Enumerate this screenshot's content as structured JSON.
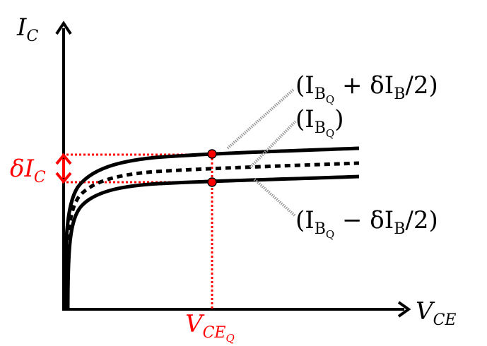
{
  "axes": {
    "y_label_main": "I",
    "y_label_sub": "C",
    "x_label_main": "V",
    "x_label_sub": "CE"
  },
  "curve_labels": {
    "upper": {
      "open": "(I",
      "sub": "B",
      "subsub": "Q",
      "rest": " + δI",
      "rest_sub": "B",
      "tail": "/2)"
    },
    "middle": {
      "open": "(I",
      "sub": "B",
      "subsub": "Q",
      "tail": ")"
    },
    "lower": {
      "open": "(I",
      "sub": "B",
      "subsub": "Q",
      "rest": " − δI",
      "rest_sub": "B",
      "tail": "/2)"
    }
  },
  "delta_label": {
    "main": "δI",
    "sub": "C"
  },
  "operating_point_label": {
    "main": "V",
    "sub": "CE",
    "subsub": "Q"
  },
  "colors": {
    "curve": "#000000",
    "annotation": "#ff0000",
    "leader": "#9a9a9a"
  }
}
